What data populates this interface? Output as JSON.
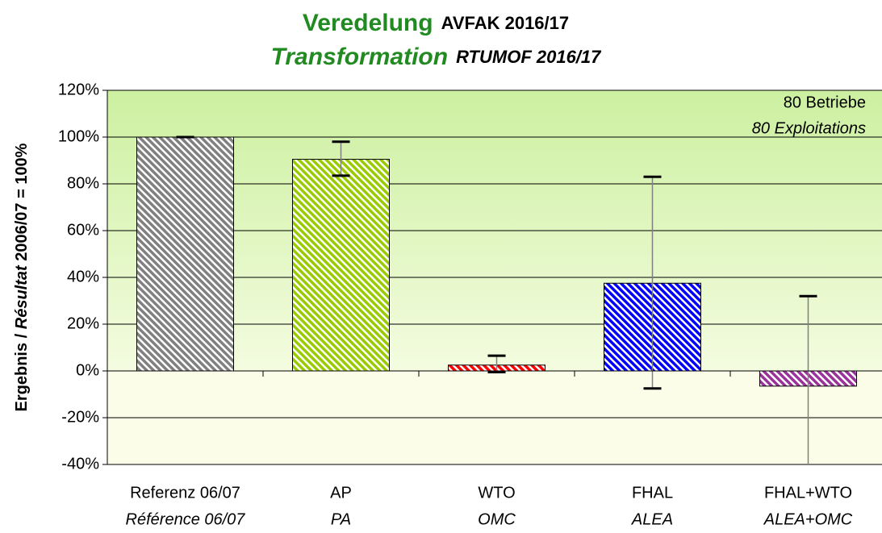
{
  "chart_data": {
    "type": "bar",
    "title": "Veredelung",
    "title_suffix": "AVFAK 2016/17",
    "subtitle": "Transformation",
    "subtitle_suffix": "RTUMOF 2016/17",
    "y_label": {
      "part1": "Ergebnis / ",
      "part2": "Résultat",
      "part3": " 2006/07 = 100%"
    },
    "annotations": [
      "80 Betriebe",
      "80 Exploitations"
    ],
    "categories": [
      "Referenz 06/07",
      "AP",
      "WTO",
      "FHAL",
      "FHAL+WTO"
    ],
    "categories_fr": [
      "Référence 06/07",
      "PA",
      "OMC",
      "ALEA",
      "ALEA+OMC"
    ],
    "series": [
      {
        "values": [
          100,
          90.5,
          2.5,
          37.5,
          -6.5
        ],
        "error_plus": [
          0,
          7.5,
          4,
          45.5,
          38.5
        ],
        "error_minus": [
          0,
          7,
          3,
          45,
          38.5
        ],
        "colors": [
          "#808080",
          "#99cc00",
          "#ff0000",
          "#0000ff",
          "#993399"
        ]
      }
    ],
    "ylim": [
      -40,
      120
    ],
    "yticks": [
      {
        "value": -40,
        "label": "-40%"
      },
      {
        "value": -20,
        "label": "-20%"
      },
      {
        "value": 0,
        "label": "0%"
      },
      {
        "value": 20,
        "label": "20%"
      },
      {
        "value": 40,
        "label": "40%"
      },
      {
        "value": 60,
        "label": "60%"
      },
      {
        "value": 80,
        "label": "80%"
      },
      {
        "value": 100,
        "label": "100%"
      },
      {
        "value": 120,
        "label": "120%"
      }
    ],
    "grid": true
  }
}
